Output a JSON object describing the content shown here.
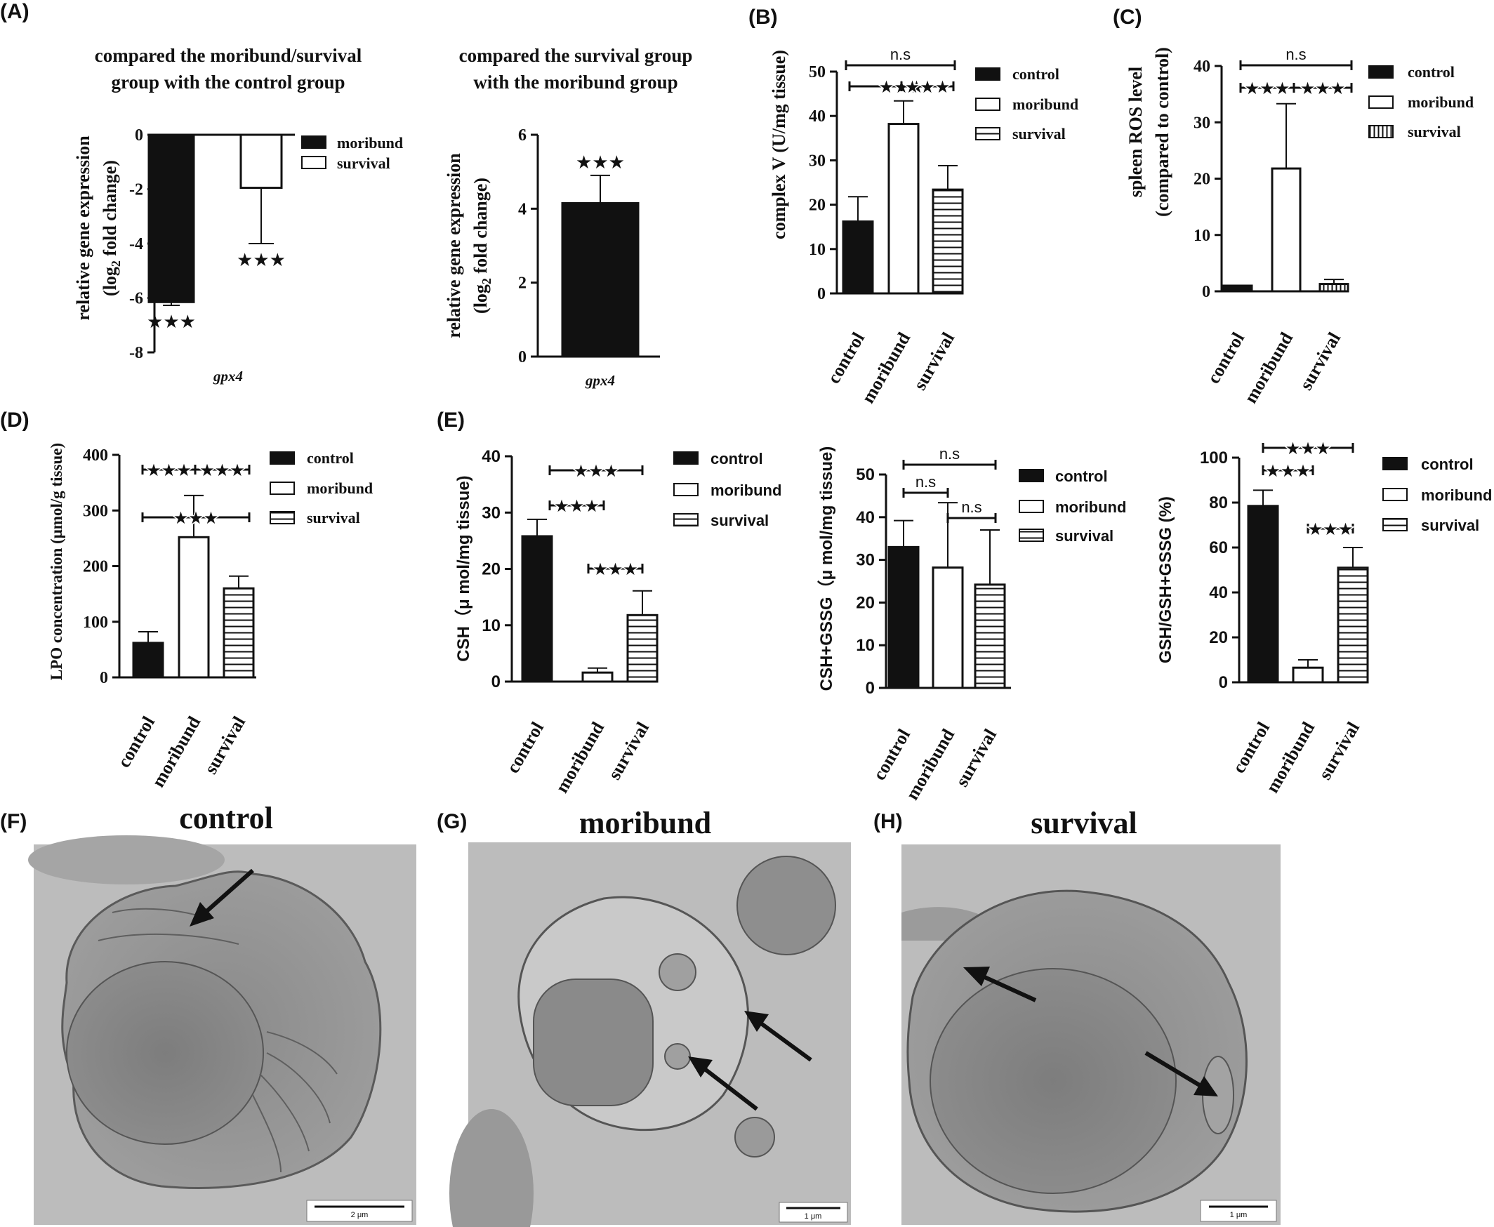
{
  "colors": {
    "ink": "#111111",
    "em_bg": "#b9b9b9",
    "em_cell": "#8f8f8f"
  },
  "panel_labels": [
    "(A)",
    "(B)",
    "(C)",
    "(D)",
    "(E)",
    "(F)",
    "(G)",
    "(H)"
  ],
  "chart_data": [
    {
      "id": "A1",
      "panel": "(A)",
      "type": "bar",
      "font": "serif",
      "title": [
        "compared the moribund/survival",
        "group with the control group"
      ],
      "ylabel": [
        "relative gene expression",
        "(log2 fold change)"
      ],
      "xlabel": "gpx4",
      "categories": [
        "moribund",
        "survival"
      ],
      "values": [
        -6.15,
        -1.95
      ],
      "errors": [
        0.12,
        2.05
      ],
      "patterns": [
        "solid",
        "open"
      ],
      "ylim": [
        -8,
        0
      ],
      "yticks": [
        0,
        -2,
        -4,
        -6,
        -8
      ],
      "star_labels": [
        "★★★",
        "★★★"
      ],
      "legend": [
        "moribund",
        "survival"
      ],
      "legend_placement": "right"
    },
    {
      "id": "A2",
      "type": "bar",
      "font": "serif",
      "title": [
        "compared the survival group",
        "with the moribund group"
      ],
      "ylabel": [
        "relative gene expression",
        "(log2 fold change)"
      ],
      "xlabel": "gpx4",
      "categories": [
        "survival"
      ],
      "values": [
        4.15
      ],
      "errors": [
        0.75
      ],
      "patterns": [
        "solid"
      ],
      "ylim": [
        0,
        6
      ],
      "yticks": [
        0,
        2,
        4,
        6
      ],
      "star_labels": [
        "★★★"
      ]
    },
    {
      "id": "B",
      "panel": "(B)",
      "type": "bar",
      "font": "serif",
      "ylabel": [
        "complex V (U/mg tissue)"
      ],
      "categories": [
        "control",
        "moribund",
        "survival"
      ],
      "values": [
        16.2,
        38.2,
        23.4
      ],
      "errors": [
        5.6,
        5.2,
        5.4
      ],
      "patterns": [
        "solid",
        "open",
        "hstripe"
      ],
      "ylim": [
        0,
        50
      ],
      "yticks": [
        0,
        10,
        20,
        30,
        40,
        50
      ],
      "significance": [
        {
          "from": "control",
          "to": "survival",
          "label": "n.s"
        },
        {
          "from": "control",
          "to": "moribund",
          "label": "★★★"
        },
        {
          "from": "moribund",
          "to": "survival",
          "label": "★★★"
        }
      ],
      "legend": [
        "control",
        "moribund",
        "survival"
      ],
      "legend_placement": "right"
    },
    {
      "id": "C",
      "panel": "(C)",
      "type": "bar",
      "font": "serif",
      "ylabel": [
        "spleen ROS level",
        "(compared to control)"
      ],
      "categories": [
        "control",
        "moribund",
        "survival"
      ],
      "values": [
        1.0,
        21.8,
        1.3
      ],
      "errors": [
        0,
        11.5,
        0.8
      ],
      "patterns": [
        "solid",
        "open",
        "vstripe"
      ],
      "ylim": [
        0,
        40
      ],
      "yticks": [
        0,
        10,
        20,
        30,
        40
      ],
      "significance": [
        {
          "from": "control",
          "to": "survival",
          "label": "n.s"
        },
        {
          "from": "control",
          "to": "moribund",
          "label": "★★★"
        },
        {
          "from": "moribund",
          "to": "survival",
          "label": "★★★"
        }
      ],
      "legend": [
        "control",
        "moribund",
        "survival"
      ],
      "legend_placement": "right"
    },
    {
      "id": "D",
      "panel": "(D)",
      "type": "bar",
      "font": "serif",
      "ylabel": [
        "LPO concentration (μmol/g tissue)"
      ],
      "categories": [
        "control",
        "moribund",
        "survival"
      ],
      "values": [
        62,
        252,
        160
      ],
      "errors": [
        20,
        75,
        22
      ],
      "patterns": [
        "solid",
        "open",
        "hstripe"
      ],
      "ylim": [
        0,
        400
      ],
      "yticks": [
        0,
        100,
        200,
        300,
        400
      ],
      "significance": [
        {
          "from": "control",
          "to": "moribund",
          "label": "★★★"
        },
        {
          "from": "moribund",
          "to": "survival",
          "label": "★★★"
        },
        {
          "from": "control",
          "to": "survival",
          "label": "★★★"
        }
      ],
      "legend": [
        "control",
        "moribund",
        "survival"
      ],
      "legend_placement": "right"
    },
    {
      "id": "E1",
      "panel": "(E)",
      "type": "bar",
      "font": "sans",
      "ylabel": [
        "CSH（μ mol/mg tissue)"
      ],
      "categories": [
        "control",
        "moribund",
        "survival"
      ],
      "values": [
        25.8,
        1.6,
        11.8
      ],
      "errors": [
        3.0,
        0.8,
        4.3
      ],
      "patterns": [
        "solid",
        "open",
        "hstripe"
      ],
      "ylim": [
        0,
        40
      ],
      "yticks": [
        0,
        10,
        20,
        30,
        40
      ],
      "significance": [
        {
          "from": "control",
          "to": "survival",
          "label": "★★★"
        },
        {
          "from": "control",
          "to": "moribund",
          "label": "★★★"
        },
        {
          "from": "moribund",
          "to": "survival",
          "label": "★★★"
        }
      ],
      "legend": [
        "control",
        "moribund",
        "survival"
      ],
      "legend_placement": "right"
    },
    {
      "id": "E2",
      "type": "bar",
      "font": "sans",
      "ylabel": [
        "CSH+GSSG（μ mol/mg tissue)"
      ],
      "categories": [
        "control",
        "moribund",
        "survival"
      ],
      "values": [
        33.0,
        28.2,
        24.2
      ],
      "errors": [
        6.2,
        15.2,
        12.8
      ],
      "patterns": [
        "solid",
        "open",
        "hstripe"
      ],
      "ylim": [
        0,
        50
      ],
      "yticks": [
        0,
        10,
        20,
        30,
        40,
        50
      ],
      "significance": [
        {
          "from": "control",
          "to": "survival",
          "label": "n.s"
        },
        {
          "from": "control",
          "to": "moribund",
          "label": "n.s"
        },
        {
          "from": "moribund",
          "to": "survival",
          "label": "n.s"
        }
      ],
      "legend": [
        "control",
        "moribund",
        "survival"
      ],
      "legend_placement": "right"
    },
    {
      "id": "E3",
      "type": "bar",
      "font": "sans",
      "ylabel": [
        "GSH/GSH+GSSG (%)"
      ],
      "categories": [
        "control",
        "moribund",
        "survival"
      ],
      "values": [
        78.5,
        6.5,
        51.0
      ],
      "errors": [
        7.0,
        3.5,
        9.0
      ],
      "patterns": [
        "solid",
        "open",
        "hstripe"
      ],
      "ylim": [
        0,
        100
      ],
      "yticks": [
        0,
        20,
        40,
        60,
        80,
        100
      ],
      "significance": [
        {
          "from": "control",
          "to": "survival",
          "label": "★★★"
        },
        {
          "from": "control",
          "to": "moribund",
          "label": "★★★"
        },
        {
          "from": "moribund",
          "to": "survival",
          "label": "★★★"
        }
      ],
      "legend": [
        "control",
        "moribund",
        "survival"
      ],
      "legend_placement": "right"
    }
  ],
  "micrographs": [
    {
      "panel": "(F)",
      "title": "control",
      "scale_bar": "2 μm"
    },
    {
      "panel": "(G)",
      "title": "moribund",
      "scale_bar": "1 μm"
    },
    {
      "panel": "(H)",
      "title": "survival",
      "scale_bar": "1 μm"
    }
  ]
}
